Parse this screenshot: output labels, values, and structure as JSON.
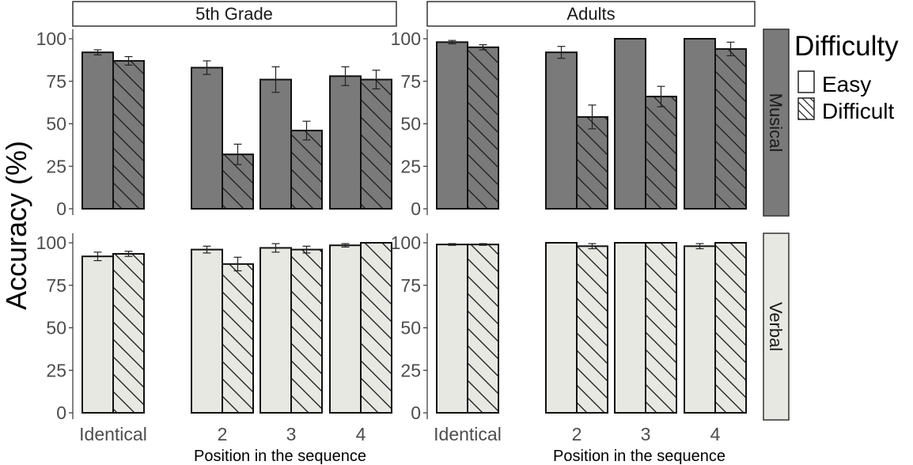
{
  "chart_data": {
    "type": "bar",
    "title": "",
    "ylabel": "Accuracy (%)",
    "xlabel": "Position in the sequence",
    "ylim": [
      0,
      100
    ],
    "yticks": [
      0,
      25,
      50,
      75,
      100
    ],
    "categories": [
      "Identical",
      "2",
      "3",
      "4"
    ],
    "columns": [
      "5th Grade",
      "Adults"
    ],
    "rows": [
      "Musical",
      "Verbal"
    ],
    "legend": {
      "title": "Difficulty",
      "position": "right",
      "items": [
        {
          "label": "Easy",
          "pattern": "solid"
        },
        {
          "label": "Difficult",
          "pattern": "hatched"
        }
      ]
    },
    "row_colors": {
      "Musical": "#7a7a7a",
      "Verbal": "#e8e8e3"
    },
    "error_bars": true,
    "panels": [
      {
        "row": "Musical",
        "column": "5th Grade",
        "series": [
          {
            "name": "Easy",
            "values": [
              92,
              83,
              76,
              78
            ],
            "errors": [
              1.5,
              4,
              7.5,
              5.5
            ]
          },
          {
            "name": "Difficult",
            "values": [
              87,
              32,
              46,
              76
            ],
            "errors": [
              2.5,
              6,
              5.5,
              5.5
            ]
          }
        ]
      },
      {
        "row": "Musical",
        "column": "Adults",
        "series": [
          {
            "name": "Easy",
            "values": [
              98,
              92,
              100,
              100
            ],
            "errors": [
              1,
              3.5,
              0,
              0
            ]
          },
          {
            "name": "Difficult",
            "values": [
              95,
              54,
              66,
              94
            ],
            "errors": [
              1.5,
              7,
              6,
              4
            ]
          }
        ]
      },
      {
        "row": "Verbal",
        "column": "5th Grade",
        "series": [
          {
            "name": "Easy",
            "values": [
              92,
              96,
              97,
              98.5
            ],
            "errors": [
              2.5,
              2,
              2.5,
              1
            ]
          },
          {
            "name": "Difficult",
            "values": [
              93.5,
              87.5,
              96,
              100
            ],
            "errors": [
              1.5,
              4,
              2,
              0
            ]
          }
        ]
      },
      {
        "row": "Verbal",
        "column": "Adults",
        "series": [
          {
            "name": "Easy",
            "values": [
              99,
              100,
              100,
              98
            ],
            "errors": [
              0.5,
              0,
              0,
              1.5
            ]
          },
          {
            "name": "Difficult",
            "values": [
              99,
              98,
              100,
              100
            ],
            "errors": [
              0.5,
              1.5,
              0,
              0
            ]
          }
        ]
      }
    ]
  }
}
